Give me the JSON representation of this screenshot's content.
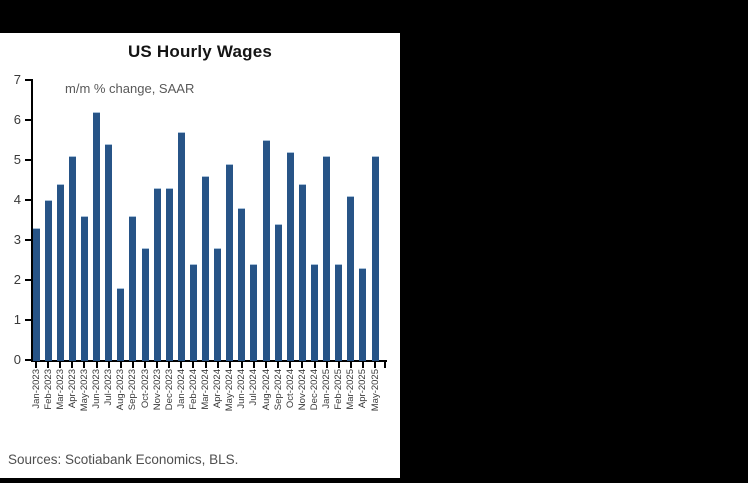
{
  "chart": {
    "title": "US Hourly Wages",
    "subtitle": "m/m % change, SAAR",
    "source_note": "Sources: Scotiabank Economics, BLS."
  },
  "chart_data": {
    "type": "bar",
    "title": "US Hourly Wages",
    "subtitle": "m/m % change, SAAR",
    "xlabel": "",
    "ylabel": "m/m % change, SAAR",
    "ylim": [
      0,
      7
    ],
    "yticks": [
      0,
      1,
      2,
      3,
      4,
      5,
      6,
      7
    ],
    "grid": false,
    "legend": "none",
    "bar_color": "#275487",
    "axis_color": "#000000",
    "categories": [
      "Jan-2023",
      "Feb-2023",
      "Mar-2023",
      "Apr-2023",
      "May-2023",
      "Jun-2023",
      "Jul-2023",
      "Aug-2023",
      "Sep-2023",
      "Oct-2023",
      "Nov-2023",
      "Dec-2023",
      "Jan-2024",
      "Feb-2024",
      "Mar-2024",
      "Apr-2024",
      "May-2024",
      "Jun-2024",
      "Jul-2024",
      "Aug-2024",
      "Sep-2024",
      "Oct-2024",
      "Nov-2024",
      "Dec-2024",
      "Jan-2025",
      "Feb-2025",
      "Mar-2025",
      "Apr-2025",
      "May-2025"
    ],
    "values": [
      3.3,
      4.0,
      4.4,
      5.1,
      3.6,
      6.2,
      5.4,
      1.8,
      3.6,
      2.8,
      4.3,
      4.3,
      5.7,
      2.4,
      4.6,
      2.8,
      4.9,
      3.8,
      2.4,
      5.5,
      3.4,
      5.2,
      4.4,
      2.4,
      5.1,
      2.4,
      4.1,
      2.3,
      5.1
    ],
    "source": "Sources: Scotiabank Economics, BLS."
  }
}
